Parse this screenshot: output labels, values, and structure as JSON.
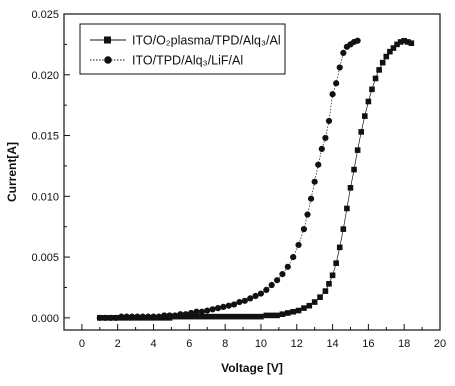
{
  "chart_data": {
    "type": "scatter",
    "xlabel": "Voltage [V]",
    "ylabel": "Current[A]",
    "xlim": [
      -1,
      20
    ],
    "ylim": [
      -0.001,
      0.025
    ],
    "xticks": [
      0,
      2,
      4,
      6,
      8,
      10,
      12,
      14,
      16,
      18,
      20
    ],
    "xtick_labels": [
      "0",
      "2",
      "4",
      "6",
      "8",
      "10",
      "12",
      "14",
      "16",
      "18",
      "20"
    ],
    "yticks": [
      0.0,
      0.005,
      0.01,
      0.015,
      0.02,
      0.025
    ],
    "ytick_labels": [
      "0.000",
      "0.005",
      "0.010",
      "0.015",
      "0.020",
      "0.025"
    ],
    "grid": false,
    "legend_position": "top-left",
    "series": [
      {
        "name": "ITO/O₂plasma/TPD/Alq₃/Al",
        "marker": "square",
        "color": "#111111",
        "x": [
          1.0,
          1.3,
          1.6,
          1.9,
          2.2,
          2.5,
          2.8,
          3.1,
          3.4,
          3.7,
          4.0,
          4.3,
          4.6,
          4.9,
          5.2,
          5.5,
          5.8,
          6.1,
          6.4,
          6.7,
          7.0,
          7.3,
          7.6,
          7.9,
          8.2,
          8.5,
          8.8,
          9.1,
          9.4,
          9.7,
          10.0,
          10.3,
          10.6,
          10.9,
          11.2,
          11.5,
          11.8,
          12.1,
          12.4,
          12.7,
          13.0,
          13.3,
          13.6,
          13.8,
          14.0,
          14.2,
          14.4,
          14.6,
          14.8,
          15.0,
          15.2,
          15.4,
          15.6,
          15.8,
          16.0,
          16.2,
          16.4,
          16.6,
          16.8,
          17.0,
          17.2,
          17.4,
          17.6,
          17.8,
          18.0,
          18.2,
          18.4
        ],
        "y": [
          0.0,
          0.0,
          0.0,
          0.0,
          0.0,
          0.0,
          0.0,
          0.0,
          0.0,
          0.0,
          0.0,
          0.0,
          0.0,
          0.0,
          0.0001,
          0.0001,
          0.0001,
          0.0001,
          0.0001,
          0.0001,
          0.0001,
          0.0001,
          0.0001,
          0.0001,
          0.0001,
          0.0001,
          0.0001,
          0.0001,
          0.0001,
          0.0001,
          0.0001,
          0.0002,
          0.0002,
          0.0002,
          0.0003,
          0.0004,
          0.0005,
          0.0006,
          0.0008,
          0.001,
          0.0013,
          0.0017,
          0.0022,
          0.0028,
          0.0035,
          0.0045,
          0.0058,
          0.0073,
          0.009,
          0.0107,
          0.0122,
          0.0138,
          0.0153,
          0.0166,
          0.0178,
          0.0188,
          0.0197,
          0.0204,
          0.021,
          0.0215,
          0.0219,
          0.0222,
          0.0225,
          0.0227,
          0.0228,
          0.0227,
          0.0226
        ]
      },
      {
        "name": "ITO/TPD/Alq₃/LiF/Al",
        "marker": "circle",
        "color": "#111111",
        "x": [
          1.0,
          1.3,
          1.6,
          1.9,
          2.2,
          2.5,
          2.8,
          3.1,
          3.4,
          3.7,
          4.0,
          4.3,
          4.6,
          4.9,
          5.2,
          5.5,
          5.8,
          6.1,
          6.4,
          6.7,
          7.0,
          7.3,
          7.6,
          7.9,
          8.2,
          8.5,
          8.8,
          9.1,
          9.4,
          9.7,
          10.0,
          10.3,
          10.6,
          10.9,
          11.2,
          11.5,
          11.8,
          12.1,
          12.4,
          12.6,
          12.8,
          13.0,
          13.2,
          13.4,
          13.6,
          13.8,
          14.0,
          14.2,
          14.4,
          14.6,
          14.8,
          15.0,
          15.2,
          15.4
        ],
        "y": [
          0.0,
          0.0,
          0.0,
          0.0,
          0.0001,
          0.0001,
          0.0001,
          0.0001,
          0.0001,
          0.0001,
          0.0001,
          0.0001,
          0.0002,
          0.0002,
          0.0002,
          0.0003,
          0.0003,
          0.0004,
          0.0005,
          0.0005,
          0.0006,
          0.0007,
          0.0008,
          0.0009,
          0.001,
          0.0011,
          0.0013,
          0.0014,
          0.0016,
          0.0018,
          0.002,
          0.0023,
          0.0027,
          0.0031,
          0.0036,
          0.0042,
          0.005,
          0.006,
          0.0073,
          0.0085,
          0.0098,
          0.0112,
          0.0126,
          0.0139,
          0.0148,
          0.0162,
          0.0184,
          0.0193,
          0.0206,
          0.0218,
          0.0223,
          0.0225,
          0.0227,
          0.0228
        ]
      }
    ]
  }
}
